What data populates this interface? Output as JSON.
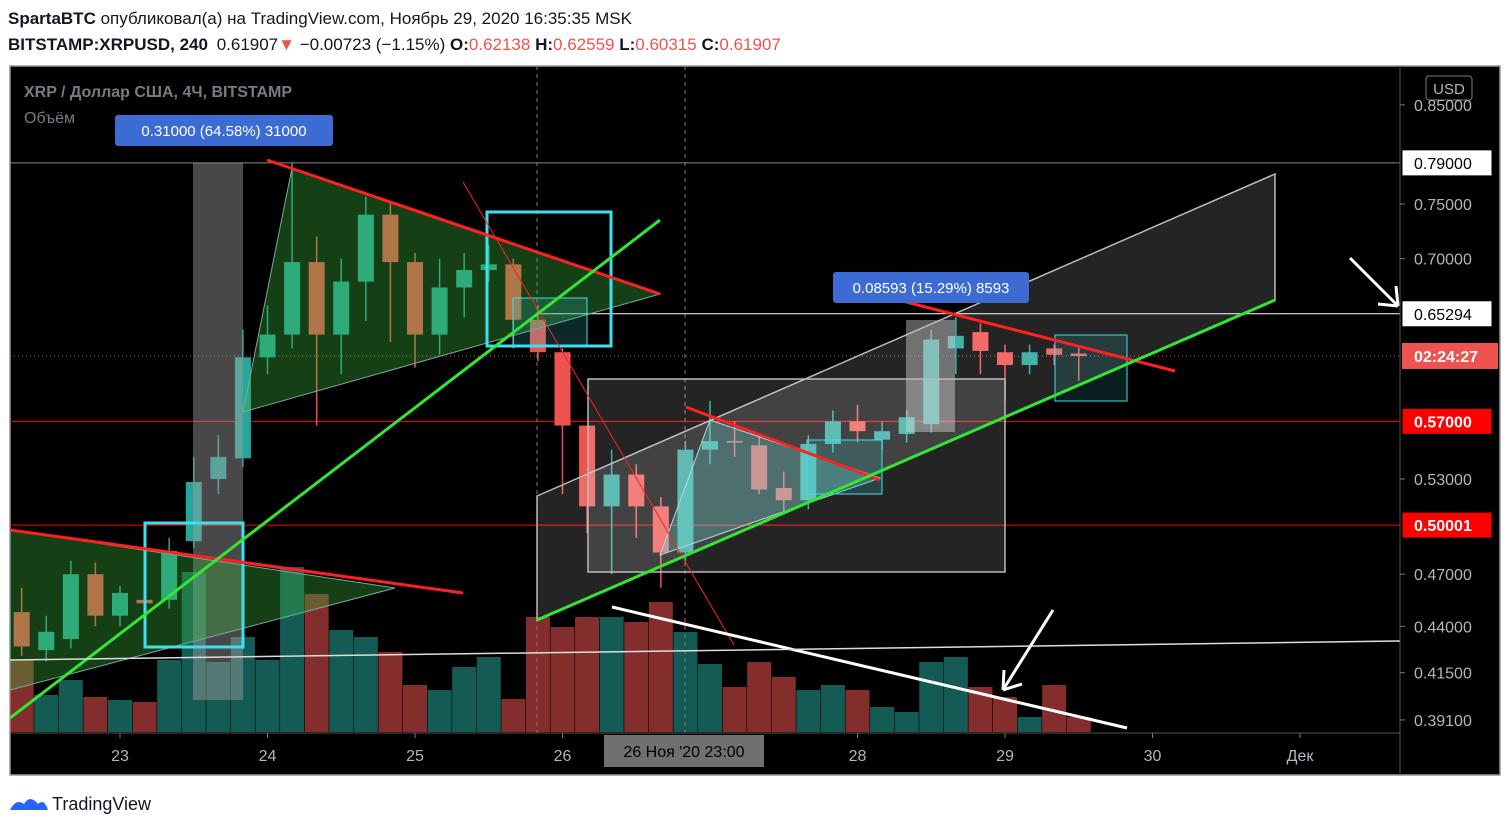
{
  "header": {
    "author": "SpartaBTC",
    "published": "опубликовал(а) на TradingView.com, Ноябрь 29, 2020 16:35:35 MSK",
    "symbol": "BITSTAMP:XRPUSD, 240",
    "last": 0.61907,
    "arrow": "▼",
    "change": "−0.00723 (−1.15%)",
    "o_label": "O:",
    "open": 0.62138,
    "h_label": "H:",
    "high": 0.62559,
    "l_label": "L:",
    "low": 0.60315,
    "c_label": "C:",
    "close": 0.61907
  },
  "legend": {
    "title": "XRP / Доллар США, 4Ч, BITSTAMP",
    "volume": "Объём"
  },
  "measures": [
    "0.31000 (64.58%) 31000",
    "0.08593 (15.29%) 8593"
  ],
  "price_axis": {
    "currency": "USD",
    "log": true,
    "ticks": [
      {
        "value": 0.85,
        "label": "0.85000"
      },
      {
        "value": 0.75,
        "label": "0.75000"
      },
      {
        "value": 0.7,
        "label": "0.70000"
      },
      {
        "value": 0.53,
        "label": "0.53000"
      },
      {
        "value": 0.47,
        "label": "0.47000"
      },
      {
        "value": 0.44,
        "label": "0.44000"
      },
      {
        "value": 0.415,
        "label": "0.41500"
      },
      {
        "value": 0.391,
        "label": "0.39100"
      }
    ],
    "badges": [
      {
        "value": 0.79,
        "label": "0.79000",
        "color": "#ffffff"
      },
      {
        "value": 0.65294,
        "label": "0.65294",
        "color": "#ffffff"
      },
      {
        "value": 0.57,
        "label": "0.57000",
        "color": "#ff0000"
      },
      {
        "value": 0.50001,
        "label": "0.50001",
        "color": "#ff0000"
      }
    ],
    "countdown": "02:24:27"
  },
  "time_axis": {
    "ticks": [
      {
        "value": "2020-11-23",
        "label": "23"
      },
      {
        "value": "2020-11-24",
        "label": "24"
      },
      {
        "value": "2020-11-25",
        "label": "25"
      },
      {
        "value": "2020-11-26",
        "label": "26"
      },
      {
        "value": "2020-11-28",
        "label": "28"
      },
      {
        "value": "2020-11-29",
        "label": "29"
      },
      {
        "value": "2020-11-30",
        "label": "30"
      },
      {
        "value": "2020-12-01",
        "label": "Дек"
      }
    ],
    "crosshair": "26 Ноя '20 23:00"
  },
  "candles": [
    [
      0.448,
      0.462,
      0.424,
      0.429
    ],
    [
      0.427,
      0.446,
      0.421,
      0.437
    ],
    [
      0.433,
      0.478,
      0.428,
      0.47
    ],
    [
      0.47,
      0.477,
      0.44,
      0.446
    ],
    [
      0.446,
      0.463,
      0.44,
      0.459
    ],
    [
      0.455,
      0.46,
      0.448,
      0.453
    ],
    [
      0.455,
      0.492,
      0.45,
      0.484
    ],
    [
      0.49,
      0.545,
      0.486,
      0.528
    ],
    [
      0.53,
      0.56,
      0.52,
      0.545
    ],
    [
      0.544,
      0.64,
      0.538,
      0.618
    ],
    [
      0.618,
      0.66,
      0.605,
      0.636
    ],
    [
      0.636,
      0.79,
      0.625,
      0.697
    ],
    [
      0.697,
      0.72,
      0.567,
      0.636
    ],
    [
      0.636,
      0.7,
      0.605,
      0.68
    ],
    [
      0.68,
      0.757,
      0.647,
      0.74
    ],
    [
      0.74,
      0.752,
      0.63,
      0.697
    ],
    [
      0.697,
      0.705,
      0.61,
      0.636
    ],
    [
      0.636,
      0.7,
      0.62,
      0.675
    ],
    [
      0.675,
      0.705,
      0.65,
      0.69
    ],
    [
      0.69,
      0.712,
      0.68,
      0.695
    ],
    [
      0.695,
      0.7,
      0.625,
      0.648
    ],
    [
      0.648,
      0.66,
      0.615,
      0.622
    ],
    [
      0.622,
      0.625,
      0.52,
      0.567
    ],
    [
      0.567,
      0.567,
      0.495,
      0.512
    ],
    [
      0.512,
      0.55,
      0.47,
      0.533
    ],
    [
      0.533,
      0.54,
      0.492,
      0.512
    ],
    [
      0.512,
      0.518,
      0.462,
      0.483
    ],
    [
      0.483,
      0.556,
      0.478,
      0.55
    ],
    [
      0.55,
      0.585,
      0.54,
      0.556
    ],
    [
      0.556,
      0.57,
      0.545,
      0.555
    ],
    [
      0.553,
      0.56,
      0.52,
      0.523
    ],
    [
      0.524,
      0.535,
      0.508,
      0.516
    ],
    [
      0.516,
      0.56,
      0.51,
      0.554
    ],
    [
      0.554,
      0.578,
      0.548,
      0.57
    ],
    [
      0.57,
      0.582,
      0.555,
      0.563
    ],
    [
      0.557,
      0.57,
      0.55,
      0.563
    ],
    [
      0.561,
      0.578,
      0.555,
      0.573
    ],
    [
      0.568,
      0.64,
      0.562,
      0.632
    ],
    [
      0.625,
      0.65,
      0.605,
      0.635
    ],
    [
      0.638,
      0.645,
      0.605,
      0.623
    ],
    [
      0.622,
      0.628,
      0.585,
      0.612
    ],
    [
      0.612,
      0.628,
      0.605,
      0.622
    ],
    [
      0.625,
      0.628,
      0.612,
      0.62
    ],
    [
      0.621,
      0.626,
      0.6,
      0.619
    ]
  ],
  "volumes": [
    72,
    37,
    52,
    35,
    32,
    30,
    72,
    160,
    70,
    95,
    72,
    165,
    138,
    102,
    95,
    80,
    47,
    42,
    65,
    75,
    33,
    115,
    105,
    115,
    115,
    110,
    130,
    100,
    68,
    45,
    70,
    55,
    42,
    47,
    42,
    25,
    20,
    70,
    75,
    45,
    35,
    15,
    47,
    15
  ],
  "footer": "TradingView"
}
